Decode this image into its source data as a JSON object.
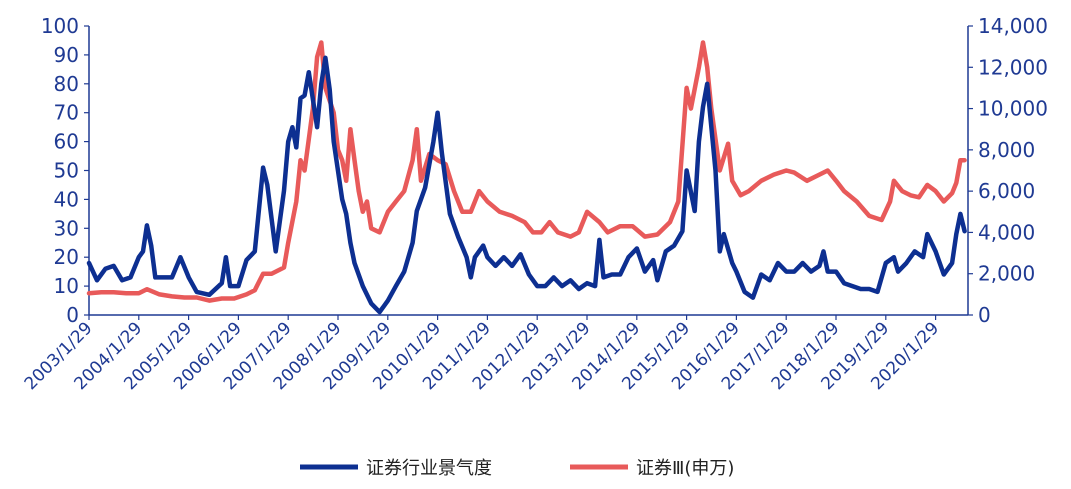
{
  "chart_data": {
    "type": "line",
    "title": "",
    "xlabel": "",
    "ylabel_left": "",
    "ylabel_right": "",
    "x_start": "2003/1/29",
    "x_tick_labels": [
      "2003/1/29",
      "2004/1/29",
      "2005/1/29",
      "2006/1/29",
      "2007/1/29",
      "2008/1/29",
      "2009/1/29",
      "2010/1/29",
      "2011/1/29",
      "2012/1/29",
      "2013/1/29",
      "2014/1/29",
      "2015/1/29",
      "2016/1/29",
      "2017/1/29",
      "2018/1/29",
      "2019/1/29",
      "2020/1/29"
    ],
    "ylim_left": [
      0,
      100
    ],
    "yticks_left": [
      "0",
      "10",
      "20",
      "30",
      "40",
      "50",
      "60",
      "70",
      "80",
      "90",
      "100"
    ],
    "ylim_right": [
      0,
      14000
    ],
    "yticks_right": [
      "0",
      "2,000",
      "4,000",
      "6,000",
      "8,000",
      "10,000",
      "12,000",
      "14,000"
    ],
    "legend_position": "bottom",
    "series": [
      {
        "name": "证券行业景气度",
        "axis": "left",
        "color": "#0d2f91",
        "points": [
          [
            "2003/1/29",
            18
          ],
          [
            "2003/3/29",
            12
          ],
          [
            "2003/5/29",
            16
          ],
          [
            "2003/7/29",
            17
          ],
          [
            "2003/9/29",
            12
          ],
          [
            "2003/11/29",
            13
          ],
          [
            "2004/1/29",
            20
          ],
          [
            "2004/2/29",
            22
          ],
          [
            "2004/3/29",
            31
          ],
          [
            "2004/4/29",
            24
          ],
          [
            "2004/5/29",
            13
          ],
          [
            "2004/7/29",
            13
          ],
          [
            "2004/9/29",
            13
          ],
          [
            "2004/11/29",
            20
          ],
          [
            "2005/1/29",
            13
          ],
          [
            "2005/3/29",
            8
          ],
          [
            "2005/6/29",
            7
          ],
          [
            "2005/9/29",
            11
          ],
          [
            "2005/10/29",
            20
          ],
          [
            "2005/11/29",
            10
          ],
          [
            "2006/1/29",
            10
          ],
          [
            "2006/3/29",
            19
          ],
          [
            "2006/5/29",
            22
          ],
          [
            "2006/7/29",
            51
          ],
          [
            "2006/8/29",
            45
          ],
          [
            "2006/10/29",
            22
          ],
          [
            "2006/12/29",
            43
          ],
          [
            "2007/1/29",
            60
          ],
          [
            "2007/2/29",
            65
          ],
          [
            "2007/3/29",
            58
          ],
          [
            "2007/4/29",
            75
          ],
          [
            "2007/5/29",
            76
          ],
          [
            "2007/6/29",
            84
          ],
          [
            "2007/8/29",
            65
          ],
          [
            "2007/9/29",
            80
          ],
          [
            "2007/10/29",
            89
          ],
          [
            "2007/11/29",
            78
          ],
          [
            "2007/12/29",
            60
          ],
          [
            "2008/2/29",
            40
          ],
          [
            "2008/3/29",
            35
          ],
          [
            "2008/4/29",
            25
          ],
          [
            "2008/5/29",
            18
          ],
          [
            "2008/7/29",
            10
          ],
          [
            "2008/9/29",
            4
          ],
          [
            "2008/11/29",
            1
          ],
          [
            "2009/1/29",
            5
          ],
          [
            "2009/3/29",
            10
          ],
          [
            "2009/5/29",
            15
          ],
          [
            "2009/7/29",
            25
          ],
          [
            "2009/8/29",
            36
          ],
          [
            "2009/10/29",
            44
          ],
          [
            "2009/12/29",
            60
          ],
          [
            "2010/1/29",
            70
          ],
          [
            "2010/2/29",
            56
          ],
          [
            "2010/4/29",
            35
          ],
          [
            "2010/6/29",
            27
          ],
          [
            "2010/8/29",
            20
          ],
          [
            "2010/9/29",
            13
          ],
          [
            "2010/10/29",
            20
          ],
          [
            "2010/12/29",
            24
          ],
          [
            "2011/1/29",
            20
          ],
          [
            "2011/3/29",
            17
          ],
          [
            "2011/5/29",
            20
          ],
          [
            "2011/7/29",
            17
          ],
          [
            "2011/9/29",
            21
          ],
          [
            "2011/11/29",
            14
          ],
          [
            "2012/1/29",
            10
          ],
          [
            "2012/3/29",
            10
          ],
          [
            "2012/5/29",
            13
          ],
          [
            "2012/7/29",
            10
          ],
          [
            "2012/9/29",
            12
          ],
          [
            "2012/11/29",
            9
          ],
          [
            "2013/1/29",
            11
          ],
          [
            "2013/3/29",
            10
          ],
          [
            "2013/4/29",
            26
          ],
          [
            "2013/5/29",
            13
          ],
          [
            "2013/7/29",
            14
          ],
          [
            "2013/9/29",
            14
          ],
          [
            "2013/11/29",
            20
          ],
          [
            "2014/1/29",
            23
          ],
          [
            "2014/3/29",
            15
          ],
          [
            "2014/5/29",
            19
          ],
          [
            "2014/6/29",
            12
          ],
          [
            "2014/8/29",
            22
          ],
          [
            "2014/10/29",
            24
          ],
          [
            "2014/12/29",
            29
          ],
          [
            "2015/1/29",
            50
          ],
          [
            "2015/3/29",
            36
          ],
          [
            "2015/4/29",
            60
          ],
          [
            "2015/5/29",
            72
          ],
          [
            "2015/6/29",
            80
          ],
          [
            "2015/8/29",
            50
          ],
          [
            "2015/9/29",
            22
          ],
          [
            "2015/10/29",
            28
          ],
          [
            "2015/12/29",
            18
          ],
          [
            "2016/1/29",
            15
          ],
          [
            "2016/3/29",
            8
          ],
          [
            "2016/5/29",
            6
          ],
          [
            "2016/7/29",
            14
          ],
          [
            "2016/9/29",
            12
          ],
          [
            "2016/11/29",
            18
          ],
          [
            "2017/1/29",
            15
          ],
          [
            "2017/3/29",
            15
          ],
          [
            "2017/5/29",
            18
          ],
          [
            "2017/7/29",
            15
          ],
          [
            "2017/9/29",
            17
          ],
          [
            "2017/10/29",
            22
          ],
          [
            "2017/11/29",
            15
          ],
          [
            "2018/1/29",
            15
          ],
          [
            "2018/3/29",
            11
          ],
          [
            "2018/5/29",
            10
          ],
          [
            "2018/7/29",
            9
          ],
          [
            "2018/9/29",
            9
          ],
          [
            "2018/11/29",
            8
          ],
          [
            "2019/1/29",
            18
          ],
          [
            "2019/3/29",
            20
          ],
          [
            "2019/4/29",
            15
          ],
          [
            "2019/6/29",
            18
          ],
          [
            "2019/8/29",
            22
          ],
          [
            "2019/10/29",
            20
          ],
          [
            "2019/11/29",
            28
          ],
          [
            "2020/1/29",
            22
          ],
          [
            "2020/3/29",
            14
          ],
          [
            "2020/5/29",
            18
          ],
          [
            "2020/6/29",
            28
          ],
          [
            "2020/7/29",
            35
          ],
          [
            "2020/8/29",
            29
          ]
        ]
      },
      {
        "name": "证券Ⅲ(申万)",
        "axis": "right",
        "color": "#e85a5a",
        "points": [
          [
            "2003/1/29",
            1050
          ],
          [
            "2003/4/29",
            1100
          ],
          [
            "2003/7/29",
            1100
          ],
          [
            "2003/10/29",
            1050
          ],
          [
            "2004/1/29",
            1050
          ],
          [
            "2004/3/29",
            1250
          ],
          [
            "2004/6/29",
            1000
          ],
          [
            "2004/9/29",
            900
          ],
          [
            "2004/12/29",
            850
          ],
          [
            "2005/3/29",
            850
          ],
          [
            "2005/6/29",
            700
          ],
          [
            "2005/9/29",
            800
          ],
          [
            "2005/12/29",
            800
          ],
          [
            "2006/3/29",
            1000
          ],
          [
            "2006/5/29",
            1200
          ],
          [
            "2006/7/29",
            2000
          ],
          [
            "2006/9/29",
            2000
          ],
          [
            "2006/12/29",
            2300
          ],
          [
            "2007/1/29",
            3500
          ],
          [
            "2007/3/29",
            5500
          ],
          [
            "2007/4/29",
            7500
          ],
          [
            "2007/5/29",
            7000
          ],
          [
            "2007/7/29",
            10000
          ],
          [
            "2007/8/29",
            12500
          ],
          [
            "2007/9/29",
            13200
          ],
          [
            "2007/10/29",
            11000
          ],
          [
            "2007/12/29",
            9800
          ],
          [
            "2008/1/29",
            8000
          ],
          [
            "2008/2/29",
            7500
          ],
          [
            "2008/3/29",
            6500
          ],
          [
            "2008/4/29",
            9000
          ],
          [
            "2008/5/29",
            7500
          ],
          [
            "2008/6/29",
            6000
          ],
          [
            "2008/7/29",
            5000
          ],
          [
            "2008/8/29",
            5500
          ],
          [
            "2008/9/29",
            4200
          ],
          [
            "2008/11/29",
            4000
          ],
          [
            "2009/1/29",
            5000
          ],
          [
            "2009/3/29",
            5500
          ],
          [
            "2009/5/29",
            6000
          ],
          [
            "2009/7/29",
            7500
          ],
          [
            "2009/8/29",
            9000
          ],
          [
            "2009/9/29",
            6500
          ],
          [
            "2009/11/29",
            7800
          ],
          [
            "2010/1/29",
            7500
          ],
          [
            "2010/3/29",
            7300
          ],
          [
            "2010/5/29",
            6000
          ],
          [
            "2010/7/29",
            5000
          ],
          [
            "2010/9/29",
            5000
          ],
          [
            "2010/11/29",
            6000
          ],
          [
            "2011/1/29",
            5500
          ],
          [
            "2011/4/29",
            5000
          ],
          [
            "2011/7/29",
            4800
          ],
          [
            "2011/10/29",
            4500
          ],
          [
            "2011/12/29",
            4000
          ],
          [
            "2012/2/29",
            4000
          ],
          [
            "2012/4/29",
            4500
          ],
          [
            "2012/6/29",
            4000
          ],
          [
            "2012/9/29",
            3800
          ],
          [
            "2012/11/29",
            4000
          ],
          [
            "2013/1/29",
            5000
          ],
          [
            "2013/4/29",
            4500
          ],
          [
            "2013/6/29",
            4000
          ],
          [
            "2013/9/29",
            4300
          ],
          [
            "2013/12/29",
            4300
          ],
          [
            "2014/3/29",
            3800
          ],
          [
            "2014/6/29",
            3900
          ],
          [
            "2014/9/29",
            4500
          ],
          [
            "2014/11/29",
            5500
          ],
          [
            "2015/1/29",
            11000
          ],
          [
            "2015/2/29",
            10000
          ],
          [
            "2015/4/29",
            12000
          ],
          [
            "2015/5/29",
            13200
          ],
          [
            "2015/6/29",
            12000
          ],
          [
            "2015/7/29",
            10000
          ],
          [
            "2015/9/29",
            7000
          ],
          [
            "2015/11/29",
            8300
          ],
          [
            "2015/12/29",
            6500
          ],
          [
            "2016/2/29",
            5800
          ],
          [
            "2016/4/29",
            6000
          ],
          [
            "2016/7/29",
            6500
          ],
          [
            "2016/10/29",
            6800
          ],
          [
            "2017/1/29",
            7000
          ],
          [
            "2017/3/29",
            6900
          ],
          [
            "2017/6/29",
            6500
          ],
          [
            "2017/9/29",
            6800
          ],
          [
            "2017/11/29",
            7000
          ],
          [
            "2018/1/29",
            6500
          ],
          [
            "2018/3/29",
            6000
          ],
          [
            "2018/6/29",
            5500
          ],
          [
            "2018/9/29",
            4800
          ],
          [
            "2018/12/29",
            4600
          ],
          [
            "2019/2/29",
            5500
          ],
          [
            "2019/3/29",
            6500
          ],
          [
            "2019/5/29",
            6000
          ],
          [
            "2019/7/29",
            5800
          ],
          [
            "2019/9/29",
            5700
          ],
          [
            "2019/11/29",
            6300
          ],
          [
            "2020/1/29",
            6000
          ],
          [
            "2020/3/29",
            5500
          ],
          [
            "2020/5/29",
            5900
          ],
          [
            "2020/6/29",
            6400
          ],
          [
            "2020/7/29",
            7500
          ],
          [
            "2020/8/29",
            7500
          ]
        ]
      }
    ]
  }
}
